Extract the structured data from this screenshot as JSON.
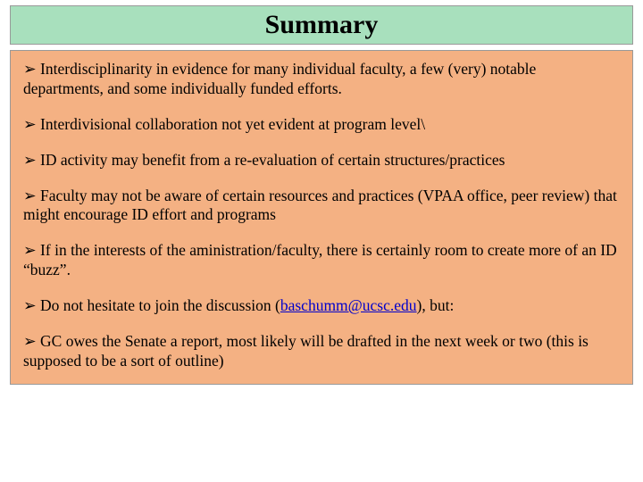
{
  "slide": {
    "title": "Summary",
    "title_bar_color": "#a8e0bd",
    "content_bg_color": "#f4b183",
    "slide_bg_color": "#ffffff",
    "title_fontsize": 30,
    "body_fontsize": 17.5,
    "bullet_glyph": "➢",
    "email_link": "baschumm@ucsc.edu",
    "bullets": [
      "Interdisciplinarity in evidence for many individual faculty, a few (very) notable departments, and some individually funded efforts.",
      "Interdivisional collaboration not yet evident at program level\\",
      "ID activity may benefit from a re-evaluation of certain structures/practices",
      "Faculty may not be aware of certain resources and practices (VPAA office, peer review) that might encourage ID effort and programs",
      "If in the interests of the aministration/faculty, there is certainly room to create more of an ID “buzz”.",
      "Do not hesitate to join the discussion (",
      "), but:",
      "GC owes the Senate a report, most likely will be drafted in the next week or two (this is supposed to be a sort of outline)"
    ]
  }
}
